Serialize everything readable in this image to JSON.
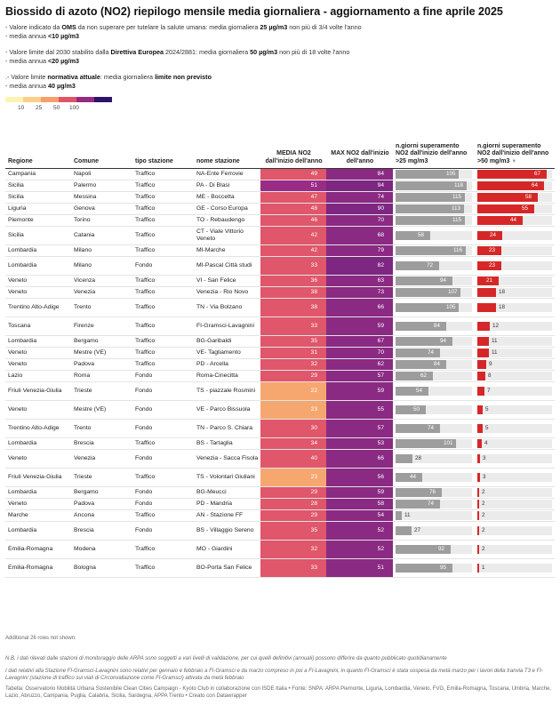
{
  "title": "Biossido di azoto (NO2) riepilogo mensile media giornaliera - aggiornamento a fine aprile 2025",
  "notes": {
    "oms_a": "- Valore indicato da ",
    "oms_b": "OMS",
    "oms_c": " da non superare per tutelare la salute umana: media giornaliera ",
    "oms_d": "25 µg/m3",
    "oms_e": " non più di 3/4 volte l'anno",
    "oms_f": "- media annua ",
    "oms_g": "<10 µg/m3",
    "dir_a": "- Valore limite dal 2030 stabilito dalla ",
    "dir_b": "Direttiva Europea",
    "dir_c": " 2024/2881: media giornaliera ",
    "dir_d": "50 µg/m3",
    "dir_e": " non più di 18 volte l'anno",
    "dir_f": "- media annua ",
    "dir_g": "<20 µg/m3",
    "att_a": ".- Valore limite ",
    "att_b": "normativa attuale",
    "att_c": ": media giornaliera ",
    "att_d": "limite non previsto",
    "att_f": "- media annua ",
    "att_g": "40 µg/m3"
  },
  "legend": {
    "labels": [
      "10",
      "25",
      "50",
      "100"
    ],
    "colors": [
      "#fff3b0",
      "#fbcf8a",
      "#f5a06a",
      "#e05566",
      "#962a82",
      "#2d1469"
    ]
  },
  "headers": {
    "regione": "Regione",
    "comune": "Comune",
    "tipo": "tipo stazione",
    "nome": "nome stazione",
    "media": "MEDIA NO2 dall'inizio dell'anno",
    "max": "MAX NO2 dall'inizio dell'anno",
    "sup25": "n.giorni superamento NO2 dall'inizio dell'anno >25 mg/m3",
    "sup50": "n.giorni superamento NO2 dall'inizio dell'anno >50 mg/m3",
    "sort_icon": "▼"
  },
  "scales": {
    "sup25_max": 118,
    "sup50_max": 67
  },
  "rows": [
    {
      "regione": "Campania",
      "comune": "Napoli",
      "tipo": "Traffico",
      "nome": "NA-Ente Ferrovie",
      "media": 49,
      "max": 84,
      "sup25": 105,
      "sup50": 67,
      "media_color": "#e0566a",
      "max_color": "#8a2a82"
    },
    {
      "regione": "Sicilia",
      "comune": "Palermo",
      "tipo": "Traffico",
      "nome": "PA - Di Blasi",
      "media": 51,
      "max": 94,
      "sup25": 118,
      "sup50": 64,
      "media_color": "#9a2c86",
      "max_color": "#7d2682"
    },
    {
      "regione": "Sicilia",
      "comune": "Messina",
      "tipo": "Traffico",
      "nome": "ME - Boccetta",
      "media": 47,
      "max": 74,
      "sup25": 115,
      "sup50": 58,
      "media_color": "#e0566a",
      "max_color": "#8a2a82"
    },
    {
      "regione": "Liguria",
      "comune": "Genova",
      "tipo": "Traffico",
      "nome": "GE - Corso Europa",
      "media": 48,
      "max": 90,
      "sup25": 113,
      "sup50": 55,
      "media_color": "#e0566a",
      "max_color": "#7d2682"
    },
    {
      "regione": "Piemonte",
      "comune": "Torino",
      "tipo": "Traffico",
      "nome": "TO - Rebaudengo",
      "media": 46,
      "max": 70,
      "sup25": 115,
      "sup50": 44,
      "media_color": "#e0566a",
      "max_color": "#8a2a82"
    },
    {
      "regione": "Sicilia",
      "comune": "Catania",
      "tipo": "Traffico",
      "nome": "CT - Viale Vittorio Veneto",
      "media": 42,
      "max": 68,
      "sup25": 58,
      "sup50": 24,
      "media_color": "#e0566a",
      "max_color": "#8a2a82"
    },
    {
      "regione": "Lombardia",
      "comune": "Milano",
      "tipo": "Traffico",
      "nome": "MI-Marche",
      "media": 42,
      "max": 79,
      "sup25": 116,
      "sup50": 23,
      "media_color": "#e0566a",
      "max_color": "#8a2a82"
    },
    {
      "regione": "Lombardia",
      "comune": "Milano",
      "tipo": "Fondo",
      "nome": "MI-Pascal Città studi",
      "media": 33,
      "max": 82,
      "sup25": 72,
      "sup50": 23,
      "media_color": "#e0566a",
      "max_color": "#7d2682"
    },
    {
      "regione": "Veneto",
      "comune": "Vicenza",
      "tipo": "Traffico",
      "nome": "VI - San Felice",
      "media": 36,
      "max": 63,
      "sup25": 94,
      "sup50": 21,
      "media_color": "#e0566a",
      "max_color": "#8a2a82"
    },
    {
      "regione": "Veneto",
      "comune": "Venezia",
      "tipo": "Traffico",
      "nome": "Venezia - Rio Novo",
      "media": 38,
      "max": 73,
      "sup25": 107,
      "sup50": 18,
      "media_color": "#e0566a",
      "max_color": "#8a2a82"
    },
    {
      "regione": "Trentino Alto-Adige",
      "comune": "Trento",
      "tipo": "Traffico",
      "nome": "TN - Via Bolzano",
      "media": 38,
      "max": 66,
      "sup25": 105,
      "sup50": 18,
      "media_color": "#e0566a",
      "max_color": "#8a2a82"
    },
    {
      "regione": "Toscana",
      "comune": "Firenze",
      "tipo": "Traffico",
      "nome": "FI-Gramsci-Lavagnini",
      "media": 33,
      "max": 59,
      "sup25": 84,
      "sup50": 12,
      "media_color": "#e0566a",
      "max_color": "#8a2a82"
    },
    {
      "regione": "Lombardia",
      "comune": "Bergamo",
      "tipo": "Traffico",
      "nome": "BG-Garibaldi",
      "media": 35,
      "max": 67,
      "sup25": 94,
      "sup50": 11,
      "media_color": "#e0566a",
      "max_color": "#8a2a82"
    },
    {
      "regione": "Veneto",
      "comune": "Mestre (VE)",
      "tipo": "Traffico",
      "nome": "VE- Tagliamento",
      "media": 31,
      "max": 70,
      "sup25": 74,
      "sup50": 11,
      "media_color": "#e0566a",
      "max_color": "#8a2a82"
    },
    {
      "regione": "Veneto",
      "comune": "Padova",
      "tipo": "Traffico",
      "nome": "PD - Arcella",
      "media": 32,
      "max": 62,
      "sup25": 84,
      "sup50": 9,
      "media_color": "#e0566a",
      "max_color": "#8a2a82"
    },
    {
      "regione": "Lazio",
      "comune": "Roma",
      "tipo": "Fondo",
      "nome": "Roma-Cinecitta",
      "media": 29,
      "max": 57,
      "sup25": 62,
      "sup50": 8,
      "media_color": "#e0566a",
      "max_color": "#8a2a82"
    },
    {
      "regione": "Friuli Venezia-Giulia",
      "comune": "Trieste",
      "tipo": "Fondo",
      "nome": "TS - piazzale Rosmini",
      "media": 22,
      "max": 59,
      "sup25": 54,
      "sup50": 7,
      "media_color": "#f6a770",
      "max_color": "#8a2a82"
    },
    {
      "regione": "Veneto",
      "comune": "Mestre (VE)",
      "tipo": "Fondo",
      "nome": "VE - Parco Bissuola",
      "media": 23,
      "max": 55,
      "sup25": 50,
      "sup50": 5,
      "media_color": "#f6a770",
      "max_color": "#8a2a82"
    },
    {
      "regione": "Trentino Alto-Adige",
      "comune": "Trento",
      "tipo": "Fondo",
      "nome": "TN - Parco S. Chiara",
      "media": 30,
      "max": 57,
      "sup25": 74,
      "sup50": 5,
      "media_color": "#e0566a",
      "max_color": "#8a2a82"
    },
    {
      "regione": "Lombardia",
      "comune": "Brescia",
      "tipo": "Traffico",
      "nome": "BS - Tartaglia",
      "media": 34,
      "max": 53,
      "sup25": 101,
      "sup50": 4,
      "media_color": "#e0566a",
      "max_color": "#8a2a82"
    },
    {
      "regione": "Veneto",
      "comune": "Venezia",
      "tipo": "Fondo",
      "nome": "Venezia - Sacca Fisola",
      "media": 40,
      "max": 66,
      "sup25": 28,
      "sup50": 3,
      "media_color": "#e0566a",
      "max_color": "#8a2a82"
    },
    {
      "regione": "Friuli Venezia-Giulia",
      "comune": "Trieste",
      "tipo": "Traffico",
      "nome": "TS - Volontari Giuliani",
      "media": 23,
      "max": 56,
      "sup25": 44,
      "sup50": 3,
      "media_color": "#f6a770",
      "max_color": "#8a2a82"
    },
    {
      "regione": "Lombardia",
      "comune": "Bergamo",
      "tipo": "Fondo",
      "nome": "BG-Meucci",
      "media": 29,
      "max": 59,
      "sup25": 76,
      "sup50": 2,
      "media_color": "#e0566a",
      "max_color": "#8a2a82"
    },
    {
      "regione": "Veneto",
      "comune": "Padova",
      "tipo": "Fondo",
      "nome": "PD - Mandria",
      "media": 28,
      "max": 58,
      "sup25": 74,
      "sup50": 2,
      "media_color": "#e0566a",
      "max_color": "#8a2a82"
    },
    {
      "regione": "Marche",
      "comune": "Ancona",
      "tipo": "Traffico",
      "nome": "AN - Stazione FF",
      "media": 29,
      "max": 54,
      "sup25": 11,
      "sup50": 2,
      "media_color": "#e0566a",
      "max_color": "#8a2a82"
    },
    {
      "regione": "Lombardia",
      "comune": "Brescia",
      "tipo": "Fondo",
      "nome": "BS - Villaggio Sereno",
      "media": 35,
      "max": 52,
      "sup25": 27,
      "sup50": 2,
      "media_color": "#e0566a",
      "max_color": "#8a2a82"
    },
    {
      "regione": "Emilia-Romagna",
      "comune": "Modena",
      "tipo": "Traffico",
      "nome": "MO - Giardini",
      "media": 32,
      "max": 52,
      "sup25": 92,
      "sup50": 2,
      "media_color": "#e0566a",
      "max_color": "#8a2a82"
    },
    {
      "regione": "Emilia-Romagna",
      "comune": "Bologna",
      "tipo": "Traffico",
      "nome": "BO-Porta San Felice",
      "media": 33,
      "max": 51,
      "sup25": 95,
      "sup50": 1,
      "media_color": "#e0566a",
      "max_color": "#8a2a82"
    }
  ],
  "footer": {
    "more": "Additional 26 rows not shown.",
    "nb": "N.B. i dati rilevati dalle stazioni di monitoraggio delle ARPA sono soggetti a vari livelli di validazione, per cui quelli definitivi (annuali) possono differire da quanto pubblicato quotidianamente",
    "firenze": "I dati relativi alla Stazione FI-Gramsci-Lavagnini sono relativi per gennaio e febbraio a FI-Gramsci e da marzo compreso in poi a FI-Lavagnini, in quanto FI-Gramsci è stata sospesa da metà marzo per i lavori della tranvia T3 e FI-Lavagnini (stazione di traffico sui viali di Circonvallazione come FI-Gramsci) attivata da metà febbraio",
    "source": "Tabella: Osservatorio Mobilità Urbana Sostenibile Clean Cities Campaign - Kyoto Club in collaborazione con ISDE Italia • Fonte: SNPA: ARPA Piemonte, Liguria, Lombardia, Veneto, FVG, Emilia-Romagna, Toscana, Umbria, Marche, Lazio, Abruzzo, Campania, Puglia, Calabria, Sicilia, Sardegna, APPA Trento • Creato con Datawrapper"
  }
}
